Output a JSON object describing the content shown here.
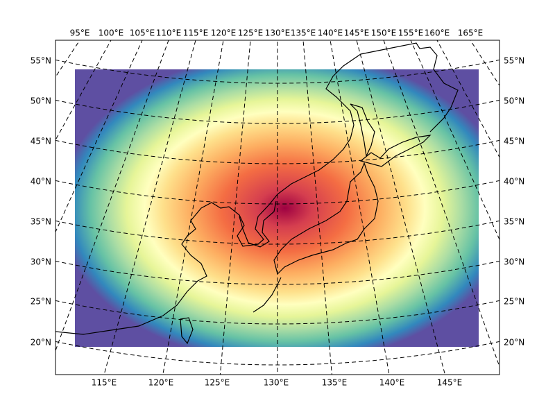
{
  "map": {
    "top_labels": [
      "95°E",
      "100°E",
      "105°E",
      "110°E",
      "115°E",
      "120°E",
      "125°E",
      "130°E",
      "135°E",
      "140°E",
      "145°E",
      "150°E",
      "155°E",
      "160°E",
      "165°E"
    ],
    "left_labels": [
      "55°N",
      "50°N",
      "45°N",
      "40°N",
      "35°N",
      "30°N",
      "25°N",
      "20°N"
    ],
    "right_labels": [
      "55°N",
      "50°N",
      "45°N",
      "40°N",
      "35°N",
      "30°N",
      "25°N",
      "20°N"
    ],
    "bottom_labels": [
      "115°E",
      "120°E",
      "125°E",
      "130°E",
      "135°E",
      "140°E",
      "145°E"
    ]
  }
}
